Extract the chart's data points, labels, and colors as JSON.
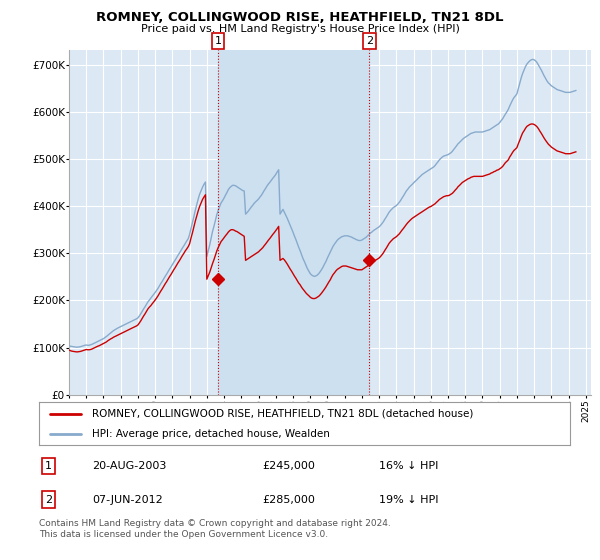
{
  "title": "ROMNEY, COLLINGWOOD RISE, HEATHFIELD, TN21 8DL",
  "subtitle": "Price paid vs. HM Land Registry's House Price Index (HPI)",
  "ylabel_ticks": [
    "£0",
    "£100K",
    "£200K",
    "£300K",
    "£400K",
    "£500K",
    "£600K",
    "£700K"
  ],
  "ylim": [
    0,
    730000
  ],
  "xlim_start": 1995.0,
  "xlim_end": 2025.3,
  "background_color": "#ffffff",
  "plot_bg_color": "#dce9f5",
  "highlight_bg_color": "#cce0f0",
  "grid_color": "#ffffff",
  "line1_color": "#cc0000",
  "line2_color": "#88aacc",
  "vline_color": "#cc0000",
  "marker_color": "#cc0000",
  "purchase1_year": 2003.64,
  "purchase1_price": 245000,
  "purchase2_year": 2012.44,
  "purchase2_price": 285000,
  "legend_label1": "ROMNEY, COLLINGWOOD RISE, HEATHFIELD, TN21 8DL (detached house)",
  "legend_label2": "HPI: Average price, detached house, Wealden",
  "table_row1": [
    "1",
    "20-AUG-2003",
    "£245,000",
    "16% ↓ HPI"
  ],
  "table_row2": [
    "2",
    "07-JUN-2012",
    "£285,000",
    "19% ↓ HPI"
  ],
  "footer": "Contains HM Land Registry data © Crown copyright and database right 2024.\nThis data is licensed under the Open Government Licence v3.0.",
  "hpi_data": {
    "years": [
      1995.0,
      1995.08,
      1995.17,
      1995.25,
      1995.33,
      1995.42,
      1995.5,
      1995.58,
      1995.67,
      1995.75,
      1995.83,
      1995.92,
      1996.0,
      1996.08,
      1996.17,
      1996.25,
      1996.33,
      1996.42,
      1996.5,
      1996.58,
      1996.67,
      1996.75,
      1996.83,
      1996.92,
      1997.0,
      1997.08,
      1997.17,
      1997.25,
      1997.33,
      1997.42,
      1997.5,
      1997.58,
      1997.67,
      1997.75,
      1997.83,
      1997.92,
      1998.0,
      1998.08,
      1998.17,
      1998.25,
      1998.33,
      1998.42,
      1998.5,
      1998.58,
      1998.67,
      1998.75,
      1998.83,
      1998.92,
      1999.0,
      1999.08,
      1999.17,
      1999.25,
      1999.33,
      1999.42,
      1999.5,
      1999.58,
      1999.67,
      1999.75,
      1999.83,
      1999.92,
      2000.0,
      2000.08,
      2000.17,
      2000.25,
      2000.33,
      2000.42,
      2000.5,
      2000.58,
      2000.67,
      2000.75,
      2000.83,
      2000.92,
      2001.0,
      2001.08,
      2001.17,
      2001.25,
      2001.33,
      2001.42,
      2001.5,
      2001.58,
      2001.67,
      2001.75,
      2001.83,
      2001.92,
      2002.0,
      2002.08,
      2002.17,
      2002.25,
      2002.33,
      2002.42,
      2002.5,
      2002.58,
      2002.67,
      2002.75,
      2002.83,
      2002.92,
      2003.0,
      2003.08,
      2003.17,
      2003.25,
      2003.33,
      2003.42,
      2003.5,
      2003.58,
      2003.67,
      2003.75,
      2003.83,
      2003.92,
      2004.0,
      2004.08,
      2004.17,
      2004.25,
      2004.33,
      2004.42,
      2004.5,
      2004.58,
      2004.67,
      2004.75,
      2004.83,
      2004.92,
      2005.0,
      2005.08,
      2005.17,
      2005.25,
      2005.33,
      2005.42,
      2005.5,
      2005.58,
      2005.67,
      2005.75,
      2005.83,
      2005.92,
      2006.0,
      2006.08,
      2006.17,
      2006.25,
      2006.33,
      2006.42,
      2006.5,
      2006.58,
      2006.67,
      2006.75,
      2006.83,
      2006.92,
      2007.0,
      2007.08,
      2007.17,
      2007.25,
      2007.33,
      2007.42,
      2007.5,
      2007.58,
      2007.67,
      2007.75,
      2007.83,
      2007.92,
      2008.0,
      2008.08,
      2008.17,
      2008.25,
      2008.33,
      2008.42,
      2008.5,
      2008.58,
      2008.67,
      2008.75,
      2008.83,
      2008.92,
      2009.0,
      2009.08,
      2009.17,
      2009.25,
      2009.33,
      2009.42,
      2009.5,
      2009.58,
      2009.67,
      2009.75,
      2009.83,
      2009.92,
      2010.0,
      2010.08,
      2010.17,
      2010.25,
      2010.33,
      2010.42,
      2010.5,
      2010.58,
      2010.67,
      2010.75,
      2010.83,
      2010.92,
      2011.0,
      2011.08,
      2011.17,
      2011.25,
      2011.33,
      2011.42,
      2011.5,
      2011.58,
      2011.67,
      2011.75,
      2011.83,
      2011.92,
      2012.0,
      2012.08,
      2012.17,
      2012.25,
      2012.33,
      2012.42,
      2012.5,
      2012.58,
      2012.67,
      2012.75,
      2012.83,
      2012.92,
      2013.0,
      2013.08,
      2013.17,
      2013.25,
      2013.33,
      2013.42,
      2013.5,
      2013.58,
      2013.67,
      2013.75,
      2013.83,
      2013.92,
      2014.0,
      2014.08,
      2014.17,
      2014.25,
      2014.33,
      2014.42,
      2014.5,
      2014.58,
      2014.67,
      2014.75,
      2014.83,
      2014.92,
      2015.0,
      2015.08,
      2015.17,
      2015.25,
      2015.33,
      2015.42,
      2015.5,
      2015.58,
      2015.67,
      2015.75,
      2015.83,
      2015.92,
      2016.0,
      2016.08,
      2016.17,
      2016.25,
      2016.33,
      2016.42,
      2016.5,
      2016.58,
      2016.67,
      2016.75,
      2016.83,
      2016.92,
      2017.0,
      2017.08,
      2017.17,
      2017.25,
      2017.33,
      2017.42,
      2017.5,
      2017.58,
      2017.67,
      2017.75,
      2017.83,
      2017.92,
      2018.0,
      2018.08,
      2018.17,
      2018.25,
      2018.33,
      2018.42,
      2018.5,
      2018.58,
      2018.67,
      2018.75,
      2018.83,
      2018.92,
      2019.0,
      2019.08,
      2019.17,
      2019.25,
      2019.33,
      2019.42,
      2019.5,
      2019.58,
      2019.67,
      2019.75,
      2019.83,
      2019.92,
      2020.0,
      2020.08,
      2020.17,
      2020.25,
      2020.33,
      2020.42,
      2020.5,
      2020.58,
      2020.67,
      2020.75,
      2020.83,
      2020.92,
      2021.0,
      2021.08,
      2021.17,
      2021.25,
      2021.33,
      2021.42,
      2021.5,
      2021.58,
      2021.67,
      2021.75,
      2021.83,
      2021.92,
      2022.0,
      2022.08,
      2022.17,
      2022.25,
      2022.33,
      2022.42,
      2022.5,
      2022.58,
      2022.67,
      2022.75,
      2022.83,
      2022.92,
      2023.0,
      2023.08,
      2023.17,
      2023.25,
      2023.33,
      2023.42,
      2023.5,
      2023.58,
      2023.67,
      2023.75,
      2023.83,
      2023.92,
      2024.0,
      2024.08,
      2024.17,
      2024.25,
      2024.33,
      2024.42
    ],
    "hpi_values": [
      104000,
      103000,
      102500,
      102000,
      101500,
      101000,
      101000,
      101500,
      102000,
      103000,
      104000,
      105000,
      105500,
      105000,
      105000,
      106000,
      107000,
      108500,
      110000,
      111500,
      113000,
      114500,
      116000,
      117500,
      119000,
      121000,
      123500,
      126000,
      128500,
      131000,
      133500,
      136000,
      138000,
      140000,
      141500,
      143000,
      144500,
      146000,
      147500,
      149000,
      150500,
      152000,
      153500,
      155000,
      156500,
      158000,
      159500,
      161000,
      163000,
      167000,
      172000,
      177000,
      182000,
      187000,
      192000,
      197000,
      201000,
      205000,
      209000,
      213000,
      217000,
      221000,
      226000,
      231000,
      236000,
      241000,
      246000,
      251000,
      256000,
      261000,
      266000,
      271000,
      276000,
      281000,
      286000,
      291000,
      296000,
      301000,
      306000,
      311000,
      316000,
      321000,
      326000,
      331000,
      340000,
      352000,
      365000,
      378000,
      391000,
      404000,
      415000,
      425000,
      433000,
      440000,
      446000,
      451000,
      293000,
      305000,
      318000,
      332000,
      346000,
      358000,
      370000,
      382000,
      392000,
      400000,
      407000,
      412000,
      417000,
      423000,
      429000,
      435000,
      439000,
      442000,
      444000,
      444000,
      443000,
      441000,
      439000,
      437000,
      435000,
      433000,
      432000,
      383000,
      386000,
      390000,
      394000,
      398000,
      402000,
      406000,
      409000,
      412000,
      415000,
      419000,
      423000,
      428000,
      433000,
      438000,
      443000,
      447000,
      451000,
      455000,
      459000,
      463000,
      467000,
      472000,
      477000,
      383000,
      388000,
      393000,
      387000,
      381000,
      374000,
      367000,
      360000,
      352000,
      345000,
      337000,
      329000,
      321000,
      313000,
      305000,
      297000,
      289000,
      282000,
      275000,
      268000,
      262000,
      257000,
      254000,
      252000,
      251000,
      252000,
      254000,
      257000,
      261000,
      266000,
      271000,
      277000,
      283000,
      290000,
      296000,
      303000,
      309000,
      315000,
      320000,
      324000,
      328000,
      331000,
      333000,
      335000,
      336000,
      337000,
      337000,
      337000,
      336000,
      335000,
      334000,
      332000,
      331000,
      329000,
      328000,
      327000,
      327000,
      328000,
      330000,
      332000,
      334000,
      337000,
      340000,
      343000,
      345000,
      348000,
      350000,
      352000,
      354000,
      356000,
      359000,
      363000,
      367000,
      372000,
      377000,
      382000,
      387000,
      391000,
      394000,
      397000,
      399000,
      401000,
      404000,
      408000,
      412000,
      417000,
      422000,
      427000,
      432000,
      436000,
      440000,
      443000,
      446000,
      449000,
      452000,
      455000,
      458000,
      461000,
      464000,
      467000,
      469000,
      471000,
      473000,
      475000,
      477000,
      479000,
      481000,
      483000,
      486000,
      490000,
      494000,
      498000,
      501000,
      504000,
      506000,
      507000,
      508000,
      509000,
      511000,
      513000,
      516000,
      520000,
      524000,
      528000,
      532000,
      535000,
      538000,
      541000,
      544000,
      546000,
      548000,
      550000,
      552000,
      554000,
      555000,
      556000,
      557000,
      557000,
      557000,
      557000,
      557000,
      557000,
      558000,
      559000,
      560000,
      561000,
      562000,
      564000,
      566000,
      568000,
      570000,
      572000,
      574000,
      577000,
      581000,
      585000,
      590000,
      595000,
      600000,
      605000,
      612000,
      619000,
      625000,
      630000,
      634000,
      638000,
      649000,
      661000,
      672000,
      681000,
      689000,
      696000,
      701000,
      705000,
      708000,
      710000,
      711000,
      710000,
      708000,
      704000,
      699000,
      694000,
      688000,
      682000,
      676000,
      670000,
      665000,
      661000,
      658000,
      655000,
      653000,
      651000,
      649000,
      647000,
      646000,
      645000,
      644000,
      643000,
      642000,
      641000,
      641000,
      641000,
      641000,
      642000,
      643000,
      644000,
      645000
    ],
    "red_values": [
      95000,
      93500,
      92500,
      92000,
      91500,
      91000,
      91000,
      91500,
      92000,
      93000,
      94000,
      95000,
      96000,
      95500,
      95500,
      96000,
      97000,
      98500,
      100000,
      101500,
      103000,
      104000,
      105500,
      107000,
      108500,
      110000,
      112000,
      114500,
      116500,
      118500,
      120000,
      122000,
      123500,
      125000,
      126500,
      128000,
      129500,
      131000,
      132500,
      134000,
      135500,
      137000,
      138500,
      140000,
      141500,
      143000,
      144500,
      146000,
      148000,
      152000,
      157000,
      162000,
      167000,
      172000,
      177000,
      182000,
      186000,
      189000,
      193000,
      197000,
      201000,
      205000,
      210000,
      215000,
      220000,
      225000,
      230000,
      235000,
      240000,
      245000,
      250000,
      255000,
      260000,
      265000,
      270000,
      275000,
      280000,
      285000,
      290000,
      295000,
      300000,
      305000,
      309000,
      314000,
      320000,
      332000,
      344000,
      356000,
      368000,
      380000,
      390000,
      399000,
      407000,
      414000,
      419000,
      424000,
      245000,
      252000,
      260000,
      269000,
      278000,
      287000,
      296000,
      305000,
      313000,
      319000,
      325000,
      329000,
      333000,
      337000,
      341000,
      345000,
      348000,
      350000,
      350000,
      349000,
      347000,
      346000,
      344000,
      342000,
      340000,
      338000,
      336000,
      285000,
      287000,
      289000,
      291000,
      293000,
      295000,
      297000,
      299000,
      301000,
      303000,
      306000,
      309000,
      312000,
      316000,
      320000,
      324000,
      328000,
      332000,
      336000,
      340000,
      344000,
      348000,
      352000,
      357000,
      285000,
      287000,
      289000,
      286000,
      282000,
      277000,
      272000,
      267000,
      262000,
      257000,
      252000,
      247000,
      242000,
      237000,
      233000,
      228000,
      224000,
      220000,
      216000,
      213000,
      210000,
      207000,
      205000,
      204000,
      204000,
      205000,
      207000,
      209000,
      212000,
      216000,
      220000,
      224000,
      229000,
      234000,
      239000,
      244000,
      250000,
      255000,
      259000,
      263000,
      266000,
      268000,
      270000,
      272000,
      273000,
      273000,
      273000,
      272000,
      271000,
      270000,
      269000,
      268000,
      267000,
      266000,
      265000,
      265000,
      265000,
      265000,
      267000,
      269000,
      271000,
      273000,
      276000,
      278000,
      280000,
      282000,
      284000,
      286000,
      288000,
      290000,
      293000,
      297000,
      301000,
      306000,
      311000,
      316000,
      321000,
      325000,
      328000,
      331000,
      333000,
      335000,
      338000,
      341000,
      345000,
      349000,
      353000,
      357000,
      361000,
      365000,
      368000,
      371000,
      374000,
      376000,
      378000,
      380000,
      382000,
      384000,
      386000,
      388000,
      390000,
      392000,
      394000,
      396000,
      398000,
      399000,
      401000,
      403000,
      405000,
      408000,
      411000,
      414000,
      416000,
      418000,
      420000,
      421000,
      422000,
      422000,
      423000,
      425000,
      427000,
      430000,
      434000,
      437000,
      441000,
      444000,
      447000,
      450000,
      452000,
      454000,
      456000,
      458000,
      459000,
      461000,
      462000,
      463000,
      463000,
      463000,
      463000,
      463000,
      463000,
      463000,
      464000,
      465000,
      466000,
      467000,
      468000,
      470000,
      471000,
      473000,
      474000,
      476000,
      477000,
      479000,
      481000,
      484000,
      488000,
      492000,
      495000,
      498000,
      504000,
      509000,
      514000,
      518000,
      521000,
      524000,
      532000,
      540000,
      548000,
      555000,
      560000,
      565000,
      569000,
      571000,
      573000,
      574000,
      574000,
      573000,
      571000,
      568000,
      564000,
      559000,
      554000,
      549000,
      544000,
      539000,
      535000,
      531000,
      528000,
      525000,
      523000,
      521000,
      519000,
      517000,
      516000,
      515000,
      514000,
      513000,
      512000,
      511000,
      511000,
      511000,
      511000,
      512000,
      513000,
      514000,
      515000
    ]
  }
}
